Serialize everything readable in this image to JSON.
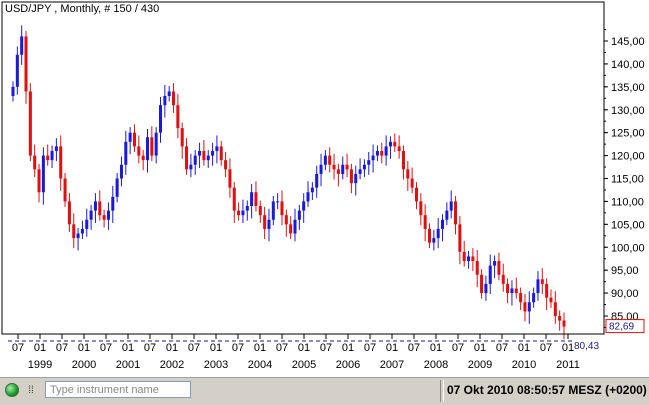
{
  "window": {
    "title": "USD/JPY , Monthly, # 150 / 430"
  },
  "status": {
    "indicator": "green-status-light",
    "input_placeholder": "Type instrument name",
    "datetime": "07 Okt 2010 08:50:57  MESZ (+0200)"
  },
  "chart_data": {
    "type": "candlestick",
    "title": "USD/JPY , Monthly, # 150 / 430",
    "y_ticks": [
      "145,00",
      "140,00",
      "135,00",
      "130,00",
      "125,00",
      "120,00",
      "115,00",
      "110,00",
      "105,00",
      "100,00",
      "95,00",
      "90,00",
      "85,00"
    ],
    "ylim": [
      80,
      148
    ],
    "x_month_labels": [
      "07",
      "01",
      "07",
      "01",
      "07",
      "01",
      "07",
      "01",
      "07",
      "01",
      "07",
      "01",
      "07",
      "01",
      "07",
      "01",
      "07",
      "01",
      "07",
      "01",
      "07",
      "01",
      "07",
      "01",
      "07",
      "01"
    ],
    "x_year_labels": [
      "1999",
      "2000",
      "2001",
      "2002",
      "2003",
      "2004",
      "2005",
      "2006",
      "2007",
      "2008",
      "2009",
      "2010",
      "2011"
    ],
    "x_range": [
      "1998-06",
      "2010-10"
    ],
    "last_price": "82,69",
    "support_line": "80,43",
    "up_color": "#1a1adc",
    "down_color": "#e01010",
    "grid": false,
    "closes": [
      135,
      142,
      146,
      134,
      120,
      117,
      112,
      120,
      119,
      121,
      122,
      115,
      110,
      105,
      102,
      103,
      104,
      106,
      108,
      110,
      107,
      106,
      108,
      111,
      115,
      118,
      123,
      125,
      122,
      120,
      119,
      124,
      120,
      125,
      131,
      133,
      134,
      131,
      126,
      122,
      117,
      118,
      120,
      121,
      119,
      120,
      121,
      122,
      119,
      117,
      113,
      108,
      107,
      108,
      109,
      112,
      109,
      107,
      104,
      106,
      110,
      110,
      107,
      105,
      103,
      106,
      108,
      110,
      112,
      113,
      116,
      118,
      120,
      118,
      117,
      116,
      118,
      117,
      114,
      116,
      117,
      118,
      119,
      120,
      121,
      120,
      122,
      123,
      122,
      121,
      117,
      115,
      113,
      110,
      107,
      104,
      101,
      102,
      104,
      106,
      108,
      110,
      105,
      99,
      97,
      98,
      97,
      94,
      90,
      92,
      96,
      97,
      94,
      92,
      90,
      91,
      90,
      88,
      86,
      88,
      90,
      93,
      92,
      89,
      88,
      85,
      84,
      82.69
    ]
  }
}
